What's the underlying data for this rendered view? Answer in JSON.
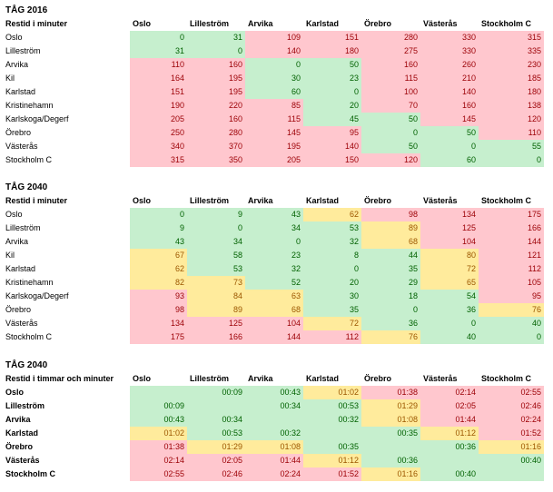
{
  "columns": [
    "Oslo",
    "Lilleström",
    "Arvika",
    "Karlstad",
    "Örebro",
    "Västerås",
    "Stockholm C"
  ],
  "tables": [
    {
      "title": "TÅG 2016",
      "subtitle": "Restid i minuter",
      "rows": [
        {
          "label": "Oslo",
          "cells": [
            [
              "0",
              "g"
            ],
            [
              "31",
              "g"
            ],
            [
              "109",
              "r"
            ],
            [
              "151",
              "r"
            ],
            [
              "280",
              "r"
            ],
            [
              "330",
              "r"
            ],
            [
              "315",
              "r"
            ]
          ]
        },
        {
          "label": "Lilleström",
          "cells": [
            [
              "31",
              "g"
            ],
            [
              "0",
              "g"
            ],
            [
              "140",
              "r"
            ],
            [
              "180",
              "r"
            ],
            [
              "275",
              "r"
            ],
            [
              "330",
              "r"
            ],
            [
              "335",
              "r"
            ]
          ]
        },
        {
          "label": "Arvika",
          "cells": [
            [
              "110",
              "r"
            ],
            [
              "160",
              "r"
            ],
            [
              "0",
              "g"
            ],
            [
              "50",
              "g"
            ],
            [
              "160",
              "r"
            ],
            [
              "260",
              "r"
            ],
            [
              "230",
              "r"
            ]
          ]
        },
        {
          "label": "Kil",
          "cells": [
            [
              "164",
              "r"
            ],
            [
              "195",
              "r"
            ],
            [
              "30",
              "g"
            ],
            [
              "23",
              "g"
            ],
            [
              "115",
              "r"
            ],
            [
              "210",
              "r"
            ],
            [
              "185",
              "r"
            ]
          ]
        },
        {
          "label": "Karlstad",
          "cells": [
            [
              "151",
              "r"
            ],
            [
              "195",
              "r"
            ],
            [
              "60",
              "g"
            ],
            [
              "0",
              "g"
            ],
            [
              "100",
              "r"
            ],
            [
              "140",
              "r"
            ],
            [
              "180",
              "r"
            ]
          ]
        },
        {
          "label": "Kristinehamn",
          "cells": [
            [
              "190",
              "r"
            ],
            [
              "220",
              "r"
            ],
            [
              "85",
              "r"
            ],
            [
              "20",
              "g"
            ],
            [
              "70",
              "r"
            ],
            [
              "160",
              "r"
            ],
            [
              "138",
              "r"
            ]
          ]
        },
        {
          "label": "Karlskoga/Degerf",
          "cells": [
            [
              "205",
              "r"
            ],
            [
              "160",
              "r"
            ],
            [
              "115",
              "r"
            ],
            [
              "45",
              "g"
            ],
            [
              "50",
              "g"
            ],
            [
              "145",
              "r"
            ],
            [
              "120",
              "r"
            ]
          ]
        },
        {
          "label": "Örebro",
          "cells": [
            [
              "250",
              "r"
            ],
            [
              "280",
              "r"
            ],
            [
              "145",
              "r"
            ],
            [
              "95",
              "r"
            ],
            [
              "0",
              "g"
            ],
            [
              "50",
              "g"
            ],
            [
              "110",
              "r"
            ]
          ]
        },
        {
          "label": "Västerås",
          "cells": [
            [
              "340",
              "r"
            ],
            [
              "370",
              "r"
            ],
            [
              "195",
              "r"
            ],
            [
              "140",
              "r"
            ],
            [
              "50",
              "g"
            ],
            [
              "0",
              "g"
            ],
            [
              "55",
              "g"
            ]
          ]
        },
        {
          "label": "Stockholm C",
          "cells": [
            [
              "315",
              "r"
            ],
            [
              "350",
              "r"
            ],
            [
              "205",
              "r"
            ],
            [
              "150",
              "r"
            ],
            [
              "120",
              "r"
            ],
            [
              "60",
              "g"
            ],
            [
              "0",
              "g"
            ]
          ]
        }
      ]
    },
    {
      "title": "TÅG 2040",
      "subtitle": "Restid i minuter",
      "rows": [
        {
          "label": "Oslo",
          "cells": [
            [
              "0",
              "g"
            ],
            [
              "9",
              "g"
            ],
            [
              "43",
              "g"
            ],
            [
              "62",
              "y"
            ],
            [
              "98",
              "r"
            ],
            [
              "134",
              "r"
            ],
            [
              "175",
              "r"
            ]
          ]
        },
        {
          "label": "Lilleström",
          "cells": [
            [
              "9",
              "g"
            ],
            [
              "0",
              "g"
            ],
            [
              "34",
              "g"
            ],
            [
              "53",
              "g"
            ],
            [
              "89",
              "y"
            ],
            [
              "125",
              "r"
            ],
            [
              "166",
              "r"
            ]
          ]
        },
        {
          "label": "Arvika",
          "cells": [
            [
              "43",
              "g"
            ],
            [
              "34",
              "g"
            ],
            [
              "0",
              "g"
            ],
            [
              "32",
              "g"
            ],
            [
              "68",
              "y"
            ],
            [
              "104",
              "r"
            ],
            [
              "144",
              "r"
            ]
          ]
        },
        {
          "label": "Kil",
          "cells": [
            [
              "67",
              "y"
            ],
            [
              "58",
              "g"
            ],
            [
              "23",
              "g"
            ],
            [
              "8",
              "g"
            ],
            [
              "44",
              "g"
            ],
            [
              "80",
              "y"
            ],
            [
              "121",
              "r"
            ]
          ]
        },
        {
          "label": "Karlstad",
          "cells": [
            [
              "62",
              "y"
            ],
            [
              "53",
              "g"
            ],
            [
              "32",
              "g"
            ],
            [
              "0",
              "g"
            ],
            [
              "35",
              "g"
            ],
            [
              "72",
              "y"
            ],
            [
              "112",
              "r"
            ]
          ]
        },
        {
          "label": "Kristinehamn",
          "cells": [
            [
              "82",
              "y"
            ],
            [
              "73",
              "y"
            ],
            [
              "52",
              "g"
            ],
            [
              "20",
              "g"
            ],
            [
              "29",
              "g"
            ],
            [
              "65",
              "y"
            ],
            [
              "105",
              "r"
            ]
          ]
        },
        {
          "label": "Karlskoga/Degerf",
          "cells": [
            [
              "93",
              "r"
            ],
            [
              "84",
              "y"
            ],
            [
              "63",
              "y"
            ],
            [
              "30",
              "g"
            ],
            [
              "18",
              "g"
            ],
            [
              "54",
              "g"
            ],
            [
              "95",
              "r"
            ]
          ]
        },
        {
          "label": "Örebro",
          "cells": [
            [
              "98",
              "r"
            ],
            [
              "89",
              "y"
            ],
            [
              "68",
              "y"
            ],
            [
              "35",
              "g"
            ],
            [
              "0",
              "g"
            ],
            [
              "36",
              "g"
            ],
            [
              "76",
              "y"
            ]
          ]
        },
        {
          "label": "Västerås",
          "cells": [
            [
              "134",
              "r"
            ],
            [
              "125",
              "r"
            ],
            [
              "104",
              "r"
            ],
            [
              "72",
              "y"
            ],
            [
              "36",
              "g"
            ],
            [
              "0",
              "g"
            ],
            [
              "40",
              "g"
            ]
          ]
        },
        {
          "label": "Stockholm C",
          "cells": [
            [
              "175",
              "r"
            ],
            [
              "166",
              "r"
            ],
            [
              "144",
              "r"
            ],
            [
              "112",
              "r"
            ],
            [
              "76",
              "y"
            ],
            [
              "40",
              "g"
            ],
            [
              "0",
              "g"
            ]
          ]
        }
      ]
    },
    {
      "title": "TÅG 2040",
      "subtitle": "Restid i timmar och minuter",
      "rows": [
        {
          "label": "Oslo",
          "cells": [
            [
              "",
              "g"
            ],
            [
              "00:09",
              "g"
            ],
            [
              "00:43",
              "g"
            ],
            [
              "01:02",
              "y"
            ],
            [
              "01:38",
              "r"
            ],
            [
              "02:14",
              "r"
            ],
            [
              "02:55",
              "r"
            ]
          ]
        },
        {
          "label": "Lilleström",
          "cells": [
            [
              "00:09",
              "g"
            ],
            [
              "",
              "g"
            ],
            [
              "00:34",
              "g"
            ],
            [
              "00:53",
              "g"
            ],
            [
              "01:29",
              "y"
            ],
            [
              "02:05",
              "r"
            ],
            [
              "02:46",
              "r"
            ]
          ]
        },
        {
          "label": "Arvika",
          "cells": [
            [
              "00:43",
              "g"
            ],
            [
              "00:34",
              "g"
            ],
            [
              "",
              "g"
            ],
            [
              "00:32",
              "g"
            ],
            [
              "01:08",
              "y"
            ],
            [
              "01:44",
              "r"
            ],
            [
              "02:24",
              "r"
            ]
          ]
        },
        {
          "label": "Karlstad",
          "cells": [
            [
              "01:02",
              "y"
            ],
            [
              "00:53",
              "g"
            ],
            [
              "00:32",
              "g"
            ],
            [
              "",
              "g"
            ],
            [
              "00:35",
              "g"
            ],
            [
              "01:12",
              "y"
            ],
            [
              "01:52",
              "r"
            ]
          ]
        },
        {
          "label": "Örebro",
          "cells": [
            [
              "01:38",
              "r"
            ],
            [
              "01:29",
              "y"
            ],
            [
              "01:08",
              "y"
            ],
            [
              "00:35",
              "g"
            ],
            [
              "",
              "g"
            ],
            [
              "00:36",
              "g"
            ],
            [
              "01:16",
              "y"
            ]
          ]
        },
        {
          "label": "Västerås",
          "cells": [
            [
              "02:14",
              "r"
            ],
            [
              "02:05",
              "r"
            ],
            [
              "01:44",
              "r"
            ],
            [
              "01:12",
              "y"
            ],
            [
              "00:36",
              "g"
            ],
            [
              "",
              "g"
            ],
            [
              "00:40",
              "g"
            ]
          ]
        },
        {
          "label": "Stockholm C",
          "cells": [
            [
              "02:55",
              "r"
            ],
            [
              "02:46",
              "r"
            ],
            [
              "02:24",
              "r"
            ],
            [
              "01:52",
              "r"
            ],
            [
              "01:16",
              "y"
            ],
            [
              "00:40",
              "g"
            ],
            [
              "",
              "g"
            ]
          ]
        }
      ]
    }
  ]
}
